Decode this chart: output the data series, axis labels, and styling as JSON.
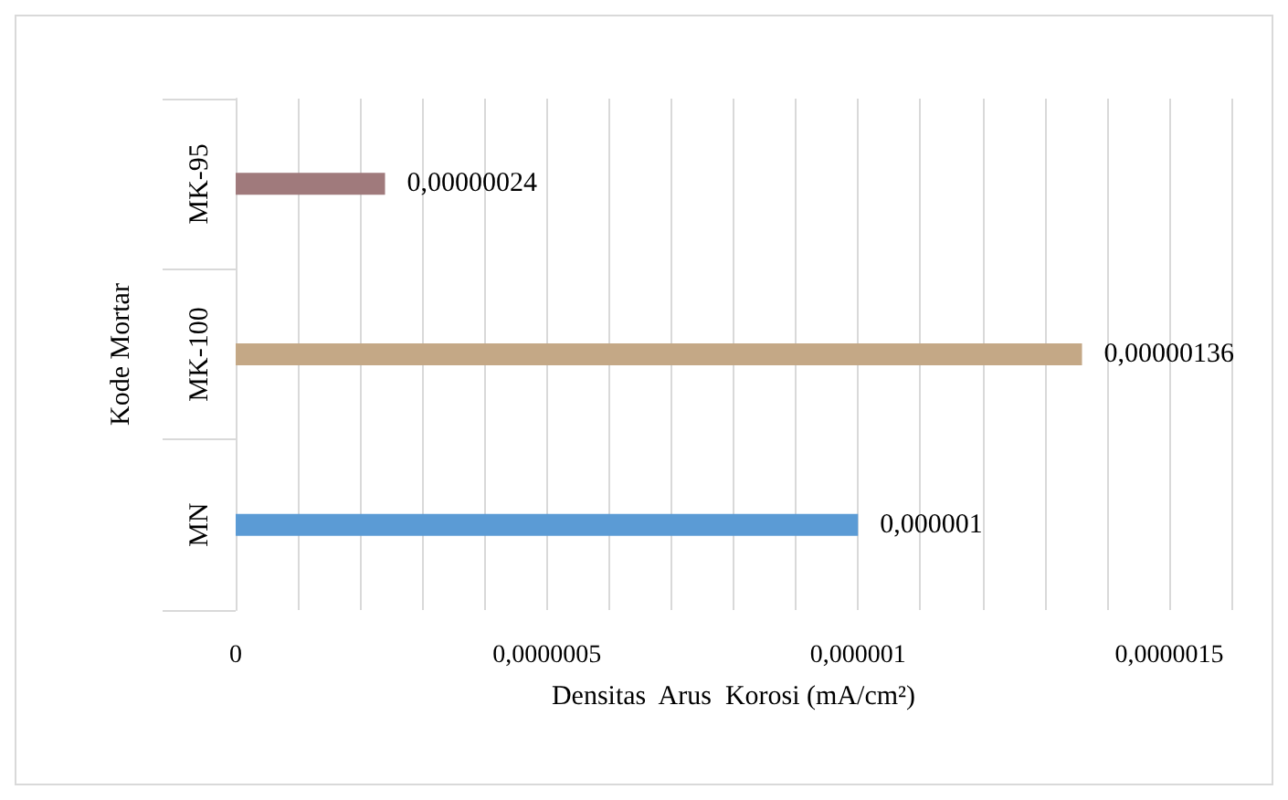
{
  "chart_data": {
    "type": "bar",
    "orientation": "horizontal",
    "categories": [
      "MK-95",
      "MK-100",
      "MN"
    ],
    "values": [
      2.4e-07,
      1.36e-06,
      1e-06
    ],
    "colors": [
      "#a07a7c",
      "#c4a886",
      "#5b9bd5"
    ],
    "value_labels": [
      "0,00000024",
      "0,00000136",
      "0,000001"
    ],
    "xlabel": "Densitas  Arus  Korosi (mA/cm²)",
    "ylabel": "Kode Mortar",
    "xlim": [
      0,
      1.6e-06
    ],
    "xticks": [
      {
        "value": 0,
        "label": "0"
      },
      {
        "value": 1e-07,
        "label": null
      },
      {
        "value": 2e-07,
        "label": null
      },
      {
        "value": 3e-07,
        "label": null
      },
      {
        "value": 4e-07,
        "label": null
      },
      {
        "value": 5e-07,
        "label": "0,0000005"
      },
      {
        "value": 6e-07,
        "label": null
      },
      {
        "value": 7e-07,
        "label": null
      },
      {
        "value": 8e-07,
        "label": null
      },
      {
        "value": 9e-07,
        "label": null
      },
      {
        "value": 1e-06,
        "label": "0,000001"
      },
      {
        "value": 1.1e-06,
        "label": null
      },
      {
        "value": 1.2e-06,
        "label": null
      },
      {
        "value": 1.3e-06,
        "label": null
      },
      {
        "value": 1.4e-06,
        "label": null
      },
      {
        "value": 1.5e-06,
        "label": "0,0000015"
      },
      {
        "value": 1.6e-06,
        "label": null
      }
    ],
    "grid": "x"
  }
}
